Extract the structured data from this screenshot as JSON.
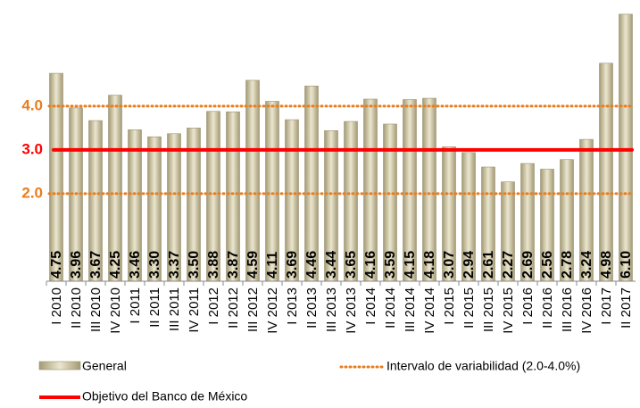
{
  "chart_data": {
    "type": "bar",
    "categories": [
      "I 2010",
      "II 2010",
      "III 2010",
      "IV 2010",
      "I 2011",
      "II 2011",
      "III 2011",
      "IV 2011",
      "I 2012",
      "II 2012",
      "III 2012",
      "IV 2012",
      "I 2013",
      "II 2013",
      "III 2013",
      "IV 2013",
      "I 2014",
      "II 2014",
      "III 2014",
      "IV 2014",
      "I 2015",
      "II 2015",
      "III 2015",
      "IV 2015",
      "I 2016",
      "II 2016",
      "III 2016",
      "IV 2016",
      "I 2017",
      "II 2017"
    ],
    "series": [
      {
        "name": "General",
        "color": "#c9c2a2",
        "values": [
          4.75,
          3.96,
          3.67,
          4.25,
          3.46,
          3.3,
          3.37,
          3.5,
          3.88,
          3.87,
          4.59,
          4.11,
          3.69,
          4.46,
          3.44,
          3.65,
          4.16,
          3.59,
          4.15,
          4.18,
          3.07,
          2.94,
          2.61,
          2.27,
          2.69,
          2.56,
          2.78,
          3.24,
          4.98,
          6.1
        ],
        "value_labels": [
          "4.75",
          "3.96",
          "3.67",
          "4.25",
          "3.46",
          "3.30",
          "3.37",
          "3.50",
          "3.88",
          "3.87",
          "4.59",
          "4.11",
          "3.69",
          "4.46",
          "3.44",
          "3.65",
          "4.16",
          "3.59",
          "4.15",
          "4.18",
          "3.07",
          "2.94",
          "2.61",
          "2.27",
          "2.69",
          "2.56",
          "2.78",
          "3.24",
          "4.98",
          "6.10"
        ]
      }
    ],
    "reference_lines": [
      {
        "name": "Intervalo de variabilidad (2.0-4.0%)",
        "color": "#e87d1e",
        "style": "dotted",
        "values": [
          2,
          4
        ]
      },
      {
        "name": "Objetivo del Banco de México",
        "color": "#ff0000",
        "style": "solid",
        "values": [
          3
        ]
      }
    ],
    "ylim": [
      0,
      6.2
    ],
    "yticks": [
      {
        "value": 2,
        "label": "2.0"
      },
      {
        "value": 3,
        "label": "3.0"
      },
      {
        "value": 4,
        "label": "4.0"
      }
    ],
    "ytick_colors": [
      "#e87d1e",
      "#ff0000",
      "#e87d1e"
    ],
    "grid": false
  }
}
